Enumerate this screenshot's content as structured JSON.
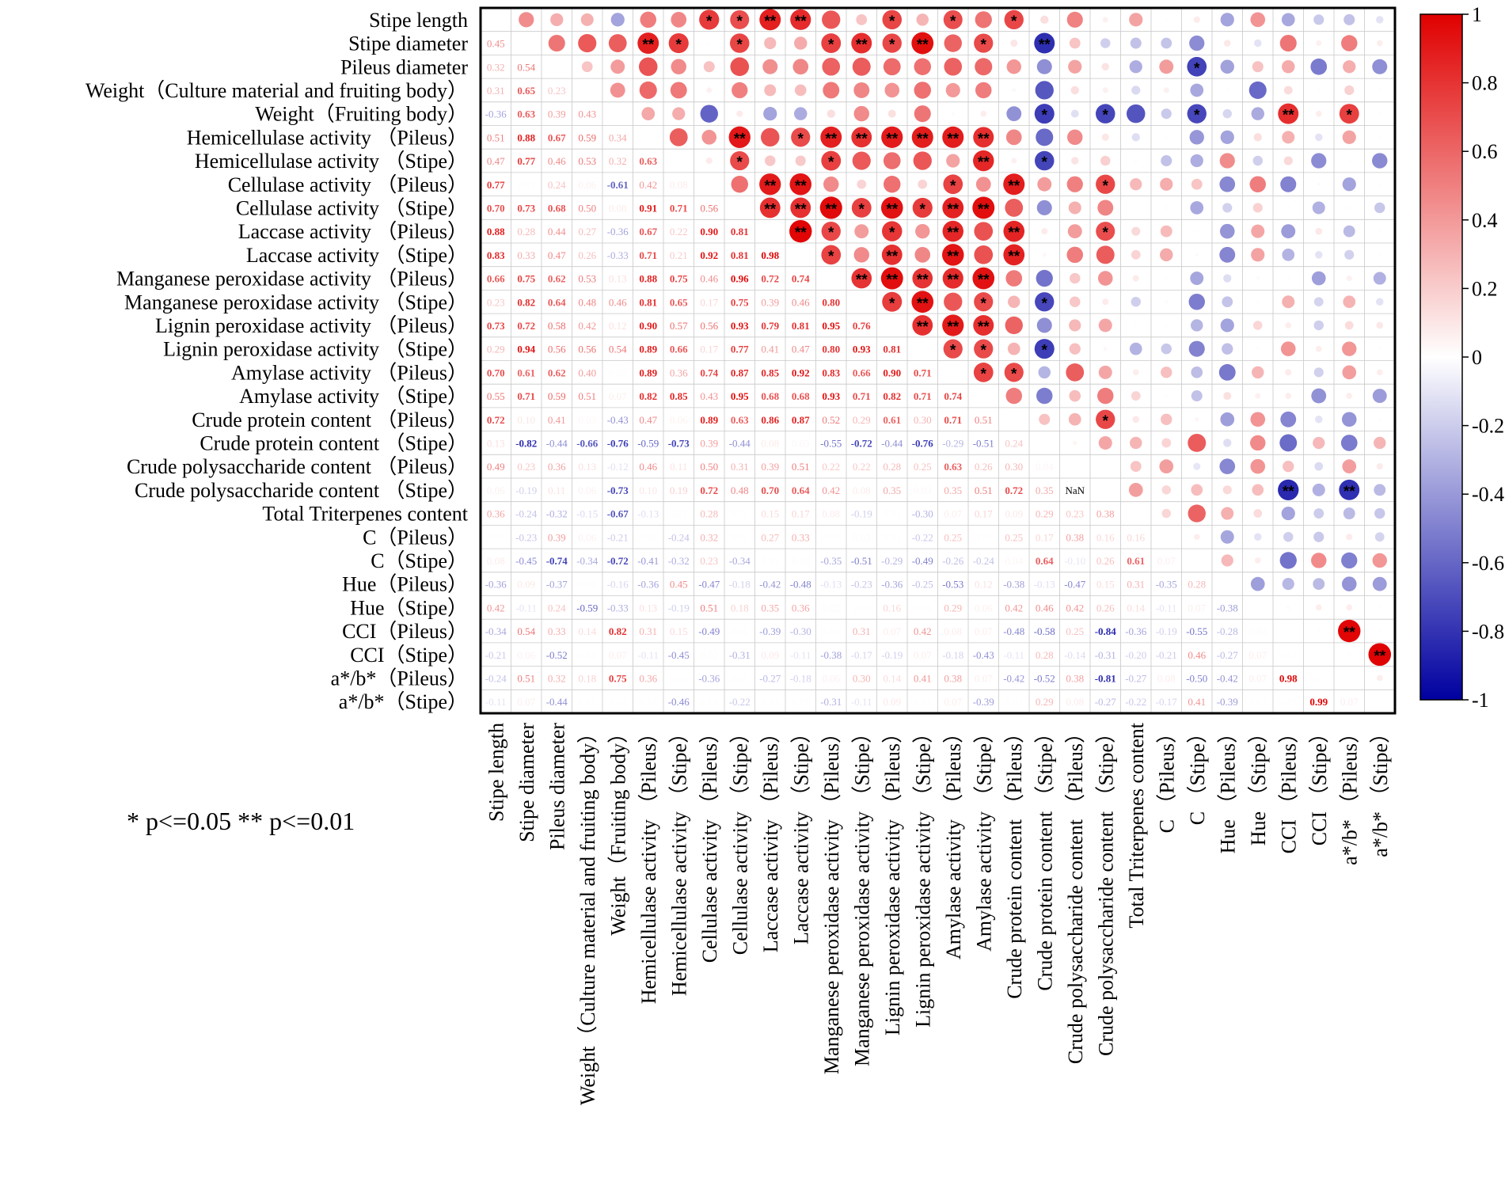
{
  "chart_data": {
    "type": "heatmap",
    "subtype": "correlation-matrix",
    "title": "",
    "lower_triangle": "correlation coefficients (text)",
    "upper_triangle": "circles sized/colored by coefficient, stars mark significance",
    "variables": [
      "Stipe length",
      "Stipe diameter",
      "Pileus diameter",
      "Weight（Culture material and fruiting body）",
      "Weight（Fruiting body）",
      "Hemicellulase activity （Pileus）",
      "Hemicellulase activity （Stipe）",
      "Cellulase activity （Pileus）",
      "Cellulase activity （Stipe）",
      "Laccase activity （Pileus）",
      "Laccase activity （Stipe）",
      "Manganese peroxidase activity （Pileus）",
      "Manganese peroxidase activity （Stipe）",
      "Lignin peroxidase activity （Pileus）",
      "Lignin peroxidase activity （Stipe）",
      "Amylase activity （Pileus）",
      "Amylase activity （Stipe）",
      "Crude protein content （Pileus）",
      "Crude protein content （Stipe）",
      "Crude polysaccharide content （Pileus）",
      "Crude polysaccharide content （Stipe）",
      "Total Triterpenes content",
      "C（Pileus）",
      "C（Stipe）",
      "Hue（Pileus）",
      "Hue（Stipe）",
      "CCI（Pileus）",
      "CCI（Stipe）",
      "a*/b*（Pileus）",
      "a*/b*（Stipe）"
    ],
    "y_labels": [
      "Stipe length",
      "Stipe diameter",
      "Pileus diameter",
      "Weight（Culture material and fruiting body）",
      "Weight（Fruiting body）",
      "Hemicellulase activity （Pileus）",
      "Hemicellulase activity （Stipe）",
      "Cellulase activity （Pileus）",
      "Cellulase activity （Stipe）",
      "Laccase activity （Pileus）",
      "Laccase activity （Stipe）",
      "Manganese peroxidase activity （Pileus）",
      "Manganese peroxidase activity （Stipe）",
      "Lignin peroxidase activity （Pileus）",
      "Lignin peroxidase activity （Stipe）",
      "Amylase activity （Pileus）",
      "Amylase activity （Stipe）",
      "Crude protein content （Pileus）",
      "Crude protein content （Stipe）",
      "Crude polysaccharide content （Pileus）",
      "Crude polysaccharide content （Stipe）",
      "Total Triterpenes content",
      "C（Pileus）",
      "C（Stipe）",
      "Hue（Pileus）",
      "Hue（Stipe）",
      "CCI（Pileus）",
      "CCI（Stipe）",
      "a*/b*（Pileus）",
      "a*/b*（Stipe）"
    ],
    "x_labels": [
      "Stipe length",
      "Stipe diameter",
      "Pileus diameter",
      "Weight（Culture material and fruiting body）",
      "Weight（Fruiting body）",
      "Hemicellulase activity （Pileus）",
      "Hemicellulase activity （Stipe）",
      "Cellulase activity （Pileus）",
      "Cellulase activity （Stipe）",
      "Laccase activity （Pileus）",
      "Laccase activity （Stipe）",
      "Manganese peroxidase activity （Pileus）",
      "Manganese peroxidase activity （Stipe）",
      "Lignin peroxidase activity （Pileus）",
      "Lignin peroxidase activity （Stipe）",
      "Amylase activity （Pileus）",
      "Amylase activity （Stipe）",
      "Crude protein content （Pileus）",
      "Crude protein content （Stipe）",
      "Crude polysaccharide content （Pileus）",
      "Crude polysaccharide content （Stipe）",
      "Total Triterpenes content",
      "C （Pileus）",
      "C （Stipe）",
      "Hue （Pileus）",
      "Hue （Stipe）",
      "CCI （Pileus）",
      "CCI （Stipe）",
      "a*/b* （Pileus）",
      "a*/b* （Stipe）"
    ],
    "lower": [
      [],
      [
        0.45
      ],
      [
        0.32,
        0.54
      ],
      [
        0.31,
        0.65,
        0.23
      ],
      [
        -0.36,
        0.63,
        0.39,
        0.43
      ],
      [
        0.51,
        0.88,
        0.67,
        0.59,
        0.34
      ],
      [
        0.47,
        0.77,
        0.46,
        0.53,
        0.32,
        0.63
      ],
      [
        0.77,
        0.01,
        0.24,
        0.06,
        -0.61,
        0.42,
        0.08
      ],
      [
        0.7,
        0.73,
        0.68,
        0.5,
        0.08,
        0.91,
        0.71,
        0.56
      ],
      [
        0.88,
        0.28,
        0.44,
        0.27,
        -0.36,
        0.67,
        0.22,
        0.9,
        0.81
      ],
      [
        0.83,
        0.33,
        0.47,
        0.26,
        -0.33,
        0.71,
        0.21,
        0.92,
        0.81,
        0.98
      ],
      [
        0.66,
        0.75,
        0.62,
        0.53,
        0.13,
        0.88,
        0.75,
        0.46,
        0.96,
        0.72,
        0.74
      ],
      [
        0.23,
        0.82,
        0.64,
        0.48,
        0.46,
        0.81,
        0.65,
        0.17,
        0.75,
        0.39,
        0.46,
        0.8
      ],
      [
        0.73,
        0.72,
        0.58,
        0.42,
        0.12,
        0.9,
        0.57,
        0.56,
        0.93,
        0.79,
        0.81,
        0.95,
        0.76
      ],
      [
        0.29,
        0.94,
        0.56,
        0.56,
        0.54,
        0.89,
        0.66,
        0.17,
        0.77,
        0.41,
        0.47,
        0.8,
        0.93,
        0.81
      ],
      [
        0.7,
        0.61,
        0.62,
        0.4,
        0.02,
        0.89,
        0.36,
        0.74,
        0.87,
        0.85,
        0.92,
        0.83,
        0.66,
        0.9,
        0.71
      ],
      [
        0.55,
        0.71,
        0.59,
        0.51,
        0.07,
        0.82,
        0.85,
        0.43,
        0.95,
        0.68,
        0.68,
        0.93,
        0.71,
        0.82,
        0.71,
        0.74
      ],
      [
        0.72,
        0.1,
        0.41,
        0.03,
        -0.43,
        0.47,
        0.06,
        0.89,
        0.63,
        0.86,
        0.87,
        0.52,
        0.29,
        0.61,
        0.3,
        0.71,
        0.51
      ],
      [
        0.13,
        -0.82,
        -0.44,
        -0.66,
        -0.76,
        -0.59,
        -0.73,
        0.39,
        -0.44,
        0.08,
        0.03,
        -0.55,
        -0.72,
        -0.44,
        -0.76,
        -0.29,
        -0.51,
        0.24
      ],
      [
        0.49,
        0.23,
        0.36,
        0.13,
        -0.12,
        0.46,
        0.11,
        0.5,
        0.31,
        0.39,
        0.51,
        0.22,
        0.22,
        0.28,
        0.25,
        0.63,
        0.26,
        0.3,
        0.04
      ],
      [
        0.06,
        -0.19,
        0.11,
        0.06,
        -0.73,
        0.1,
        0.19,
        0.72,
        0.48,
        0.7,
        0.64,
        0.42,
        0.08,
        0.35,
        0.03,
        0.35,
        0.51,
        0.72,
        0.35
      ],
      [
        0.36,
        -0.24,
        -0.32,
        -0.15,
        -0.67,
        -0.13,
        0.01,
        0.28,
        0.01,
        0.15,
        0.17,
        0.08,
        -0.19,
        0.01,
        -0.3,
        0.07,
        0.17,
        0.09,
        0.29,
        0.23,
        0.38
      ],
      [
        0.01,
        -0.23,
        0.39,
        0.06,
        -0.21,
        0.01,
        -0.24,
        0.32,
        0.01,
        0.27,
        0.33,
        0.01,
        0.02,
        0.01,
        -0.22,
        0.25,
        0.01,
        0.25,
        0.17,
        0.38,
        0.16,
        0.16
      ],
      [
        0.08,
        -0.45,
        -0.74,
        -0.34,
        -0.72,
        -0.41,
        -0.32,
        0.23,
        -0.34,
        0.01,
        0.02,
        -0.35,
        -0.51,
        -0.29,
        -0.49,
        -0.26,
        -0.24,
        0.04,
        0.64,
        -0.1,
        0.26,
        0.61,
        0.07
      ],
      [
        -0.36,
        0.09,
        -0.37,
        0.01,
        -0.16,
        -0.36,
        0.45,
        -0.47,
        -0.18,
        -0.42,
        -0.48,
        -0.13,
        -0.23,
        -0.36,
        -0.25,
        -0.53,
        0.12,
        -0.38,
        -0.13,
        -0.47,
        0.15,
        0.31,
        -0.35,
        0.28
      ],
      [
        0.42,
        -0.11,
        0.24,
        -0.59,
        -0.33,
        0.13,
        -0.19,
        0.51,
        0.18,
        0.35,
        0.36,
        0.02,
        0.01,
        0.16,
        0.01,
        0.29,
        0.06,
        0.42,
        0.46,
        0.42,
        0.26,
        0.14,
        -0.11,
        0.07,
        -0.38
      ],
      [
        -0.34,
        0.54,
        0.33,
        0.14,
        0.82,
        0.31,
        0.15,
        -0.49,
        0.01,
        -0.39,
        -0.3,
        0.01,
        0.31,
        0.07,
        0.42,
        0.08,
        0.07,
        -0.48,
        -0.58,
        0.25,
        -0.84,
        -0.36,
        -0.19,
        -0.55,
        -0.28,
        0.02
      ],
      [
        -0.21,
        0.06,
        -0.52,
        0.01,
        0.07,
        -0.11,
        -0.45,
        0.02,
        -0.31,
        0.09,
        -0.11,
        -0.38,
        -0.17,
        -0.19,
        0.07,
        -0.18,
        -0.43,
        -0.11,
        0.28,
        -0.14,
        -0.31,
        -0.2,
        -0.21,
        0.46,
        -0.27,
        0.07,
        0.01
      ],
      [
        -0.24,
        0.51,
        0.32,
        0.18,
        0.75,
        0.36,
        0.01,
        -0.36,
        0.01,
        -0.27,
        -0.18,
        0.06,
        0.3,
        0.14,
        0.41,
        0.38,
        0.07,
        -0.42,
        -0.52,
        0.38,
        -0.81,
        -0.27,
        0.08,
        -0.5,
        -0.42,
        0.07,
        0.98,
        0.01
      ],
      [
        -0.11,
        0.07,
        -0.44,
        0.01,
        0.01,
        0.01,
        -0.46,
        0.01,
        -0.22,
        0.01,
        0.01,
        -0.31,
        -0.11,
        0.09,
        0.01,
        0.07,
        -0.39,
        0.01,
        0.29,
        0.08,
        -0.27,
        -0.22,
        -0.17,
        0.41,
        -0.39,
        0.01,
        0.01,
        0.99,
        0.07
      ]
    ],
    "significance_legend": "* p<=0.05  ** p<=0.01",
    "colorbar": {
      "min": -1,
      "max": 1,
      "ticks": [
        "1",
        "0.8",
        "0.6",
        "0.4",
        "0.2",
        "0",
        "-0.2",
        "-0.4",
        "-0.6",
        "-0.8",
        "-1"
      ],
      "low_color": "#0000a0",
      "mid_color": "#ffffff",
      "high_color": "#e00000"
    }
  },
  "colors": {
    "positive": "#e00000",
    "negative": "#0000a0",
    "grid": "#c8c8c8",
    "border": "#000000"
  }
}
